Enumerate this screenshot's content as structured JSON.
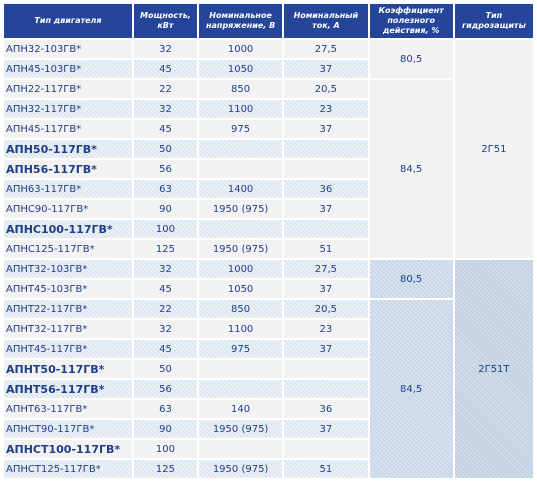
{
  "headers": {
    "type": "Тип двигателя",
    "power": "Мощность, кВт",
    "voltage": "Номинальное напряжение, В",
    "current": "Номинальный ток, А",
    "efficiency": "Коэффициент полезного действия, %",
    "protection": "Тип гидрозащиты"
  },
  "rows": [
    {
      "name": "АПН32-103ГВ*",
      "power": "32",
      "voltage": "1000",
      "current": "27,5"
    },
    {
      "name": "АПН45-103ГВ*",
      "power": "45",
      "voltage": "1050",
      "current": "37"
    },
    {
      "name": "АПН22-117ГВ*",
      "power": "22",
      "voltage": "850",
      "current": "20,5"
    },
    {
      "name": "АПН32-117ГВ*",
      "power": "32",
      "voltage": "1100",
      "current": "23"
    },
    {
      "name": "АПН45-117ГВ*",
      "power": "45",
      "voltage": "975",
      "current": "37"
    },
    {
      "name": "АПН50-117ГВ*",
      "power": "50",
      "voltage": "",
      "current": ""
    },
    {
      "name": "АПН56-117ГВ*",
      "power": "56",
      "voltage": "",
      "current": ""
    },
    {
      "name": "АПН63-117ГВ*",
      "power": "63",
      "voltage": "1400",
      "current": "36"
    },
    {
      "name": "АПНС90-117ГВ*",
      "power": "90",
      "voltage": "1950 (975)",
      "current": "37"
    },
    {
      "name": "АПНС100-117ГВ*",
      "power": "100",
      "voltage": "",
      "current": ""
    },
    {
      "name": "АПНС125-117ГВ*",
      "power": "125",
      "voltage": "1950 (975)",
      "current": "51"
    },
    {
      "name": "АПНТ32-103ГВ*",
      "power": "32",
      "voltage": "1000",
      "current": "27,5"
    },
    {
      "name": "АПНТ45-103ГВ*",
      "power": "45",
      "voltage": "1050",
      "current": "37"
    },
    {
      "name": "АПНТ22-117ГВ*",
      "power": "22",
      "voltage": "850",
      "current": "20,5"
    },
    {
      "name": "АПНТ32-117ГВ*",
      "power": "32",
      "voltage": "1100",
      "current": "23"
    },
    {
      "name": "АПНТ45-117ГВ*",
      "power": "45",
      "voltage": "975",
      "current": "37"
    },
    {
      "name": "АПНТ50-117ГВ*",
      "power": "50",
      "voltage": "",
      "current": ""
    },
    {
      "name": "АПНТ56-117ГВ*",
      "power": "56",
      "voltage": "",
      "current": ""
    },
    {
      "name": "АПНТ63-117ГВ*",
      "power": "63",
      "voltage": "140",
      "current": "36"
    },
    {
      "name": "АПНСТ90-117ГВ*",
      "power": "90",
      "voltage": "1950 (975)",
      "current": "37"
    },
    {
      "name": "АПНСТ100-117ГВ*",
      "power": "100",
      "voltage": "",
      "current": ""
    },
    {
      "name": "АПНСТ125-117ГВ*",
      "power": "125",
      "voltage": "1950 (975)",
      "current": "51"
    }
  ],
  "merged": {
    "eff_group1_top": "80,5",
    "eff_group1_bottom": "84,5",
    "prot_group1": "2Г51",
    "eff_group2_top": "80,5",
    "eff_group2_bottom": "84,5",
    "prot_group2": "2Г51Т"
  },
  "colors": {
    "header_bg": "#24459a",
    "header_text": "#ffffff",
    "body_text": "#1f3f8a"
  }
}
